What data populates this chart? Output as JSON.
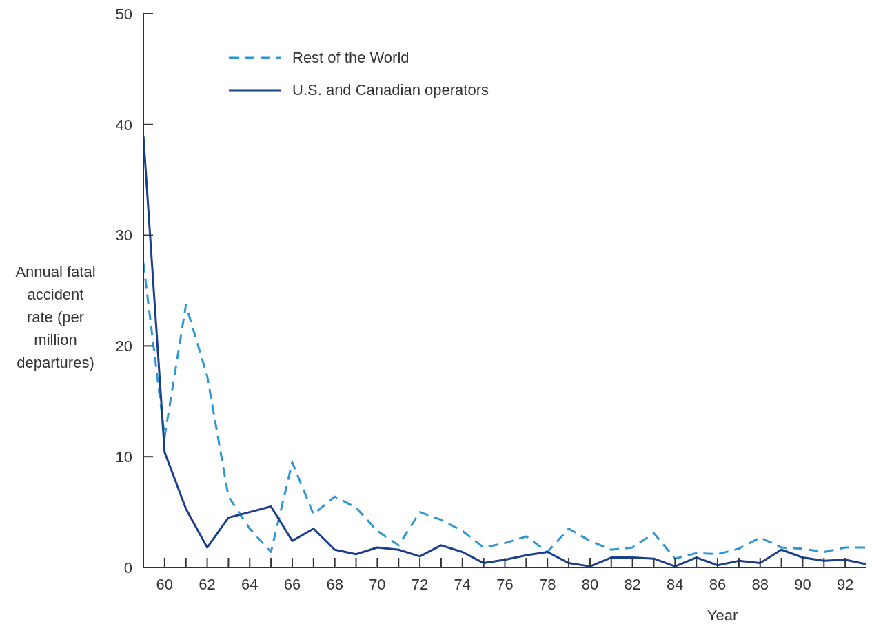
{
  "chart_data": {
    "type": "line",
    "ylabel": "Annual fatal accident rate (per million departures)",
    "xlabel": "Year",
    "x": [
      59,
      60,
      61,
      62,
      63,
      64,
      65,
      66,
      67,
      68,
      69,
      70,
      71,
      72,
      73,
      74,
      75,
      76,
      77,
      78,
      79,
      80,
      81,
      82,
      83,
      84,
      85,
      86,
      87,
      88,
      89,
      90,
      91,
      92,
      93
    ],
    "series": [
      {
        "name": "Rest of the World",
        "color": "#2e97d3",
        "line_style": "dashed",
        "values": [
          27.5,
          11.8,
          23.7,
          17.3,
          6.4,
          3.5,
          1.4,
          9.5,
          4.8,
          6.4,
          5.4,
          3.3,
          2.0,
          5.0,
          4.3,
          3.3,
          1.8,
          2.2,
          2.8,
          1.4,
          3.5,
          2.4,
          1.6,
          1.8,
          3.1,
          0.8,
          1.3,
          1.2,
          1.7,
          2.7,
          1.8,
          1.7,
          1.4,
          1.8,
          1.8
        ]
      },
      {
        "name": "U.S. and Canadian operators",
        "color": "#1a3f8c",
        "line_style": "solid",
        "values": [
          39,
          10.4,
          5.3,
          1.8,
          4.5,
          5.0,
          5.5,
          2.4,
          3.5,
          1.6,
          1.2,
          1.8,
          1.6,
          1.0,
          2.0,
          1.4,
          0.4,
          0.7,
          1.1,
          1.4,
          0.4,
          0.1,
          0.9,
          0.9,
          0.8,
          0.1,
          0.9,
          0.2,
          0.6,
          0.4,
          1.6,
          0.9,
          0.6,
          0.7,
          0.3
        ]
      }
    ],
    "xlim": [
      59,
      93
    ],
    "xticks": [
      {
        "value": 59,
        "label": null
      },
      60,
      {
        "value": 61,
        "label": null
      },
      62,
      {
        "value": 63,
        "label": null
      },
      64,
      {
        "value": 65,
        "label": null
      },
      66,
      {
        "value": 67,
        "label": null
      },
      68,
      {
        "value": 69,
        "label": null
      },
      70,
      {
        "value": 71,
        "label": null
      },
      72,
      {
        "value": 73,
        "label": null
      },
      74,
      {
        "value": 75,
        "label": null
      },
      76,
      {
        "value": 77,
        "label": null
      },
      78,
      {
        "value": 79,
        "label": null
      },
      80,
      {
        "value": 81,
        "label": null
      },
      82,
      {
        "value": 83,
        "label": null
      },
      84,
      {
        "value": 85,
        "label": null
      },
      86,
      {
        "value": 87,
        "label": null
      },
      88,
      {
        "value": 89,
        "label": null
      },
      90,
      {
        "value": 91,
        "label": null
      },
      92
    ],
    "ylim": [
      0,
      50
    ],
    "yticks": [
      0,
      10,
      20,
      30,
      40,
      50
    ],
    "grid": false,
    "legend": "top left",
    "marker": "none"
  }
}
